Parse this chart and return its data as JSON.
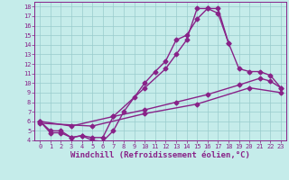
{
  "xlabel": "Windchill (Refroidissement éolien,°C)",
  "xlim": [
    -0.5,
    23.5
  ],
  "ylim": [
    4,
    18.5
  ],
  "xticks": [
    0,
    1,
    2,
    3,
    4,
    5,
    6,
    7,
    8,
    9,
    10,
    11,
    12,
    13,
    14,
    15,
    16,
    17,
    18,
    19,
    20,
    21,
    22,
    23
  ],
  "yticks": [
    4,
    5,
    6,
    7,
    8,
    9,
    10,
    11,
    12,
    13,
    14,
    15,
    16,
    17,
    18
  ],
  "bg_color": "#c5ecea",
  "line_color": "#882288",
  "grid_color": "#99cccc",
  "line1_x": [
    0,
    1,
    2,
    3,
    4,
    5,
    6,
    7,
    8,
    9,
    10,
    11,
    12,
    13,
    14,
    15,
    16,
    17,
    18
  ],
  "line1_y": [
    6.0,
    4.8,
    4.8,
    4.3,
    4.5,
    4.0,
    3.9,
    5.0,
    7.0,
    8.5,
    10.0,
    11.2,
    12.3,
    14.5,
    15.0,
    16.7,
    17.8,
    17.8,
    14.2
  ],
  "line2_x": [
    0,
    1,
    2,
    3,
    4,
    5,
    6,
    7,
    10,
    12,
    13,
    14,
    15,
    16,
    17,
    18,
    19,
    20,
    21,
    22,
    23
  ],
  "line2_y": [
    6.0,
    5.0,
    5.0,
    4.3,
    4.5,
    4.3,
    4.3,
    6.5,
    9.5,
    11.5,
    13.0,
    14.5,
    17.8,
    17.8,
    17.3,
    14.2,
    11.5,
    11.2,
    11.2,
    10.8,
    9.5
  ],
  "line3_x": [
    0,
    3,
    7,
    10,
    13,
    16,
    19,
    21,
    22,
    23
  ],
  "line3_y": [
    6.0,
    5.5,
    6.5,
    7.2,
    8.0,
    8.8,
    9.8,
    10.5,
    10.2,
    9.5
  ],
  "line4_x": [
    0,
    5,
    10,
    15,
    20,
    23
  ],
  "line4_y": [
    5.8,
    5.5,
    6.8,
    7.8,
    9.5,
    9.0
  ],
  "marker": "D",
  "marker_size": 2.5,
  "linewidth": 1.0,
  "tick_fontsize": 5.0,
  "xlabel_fontsize": 6.5
}
